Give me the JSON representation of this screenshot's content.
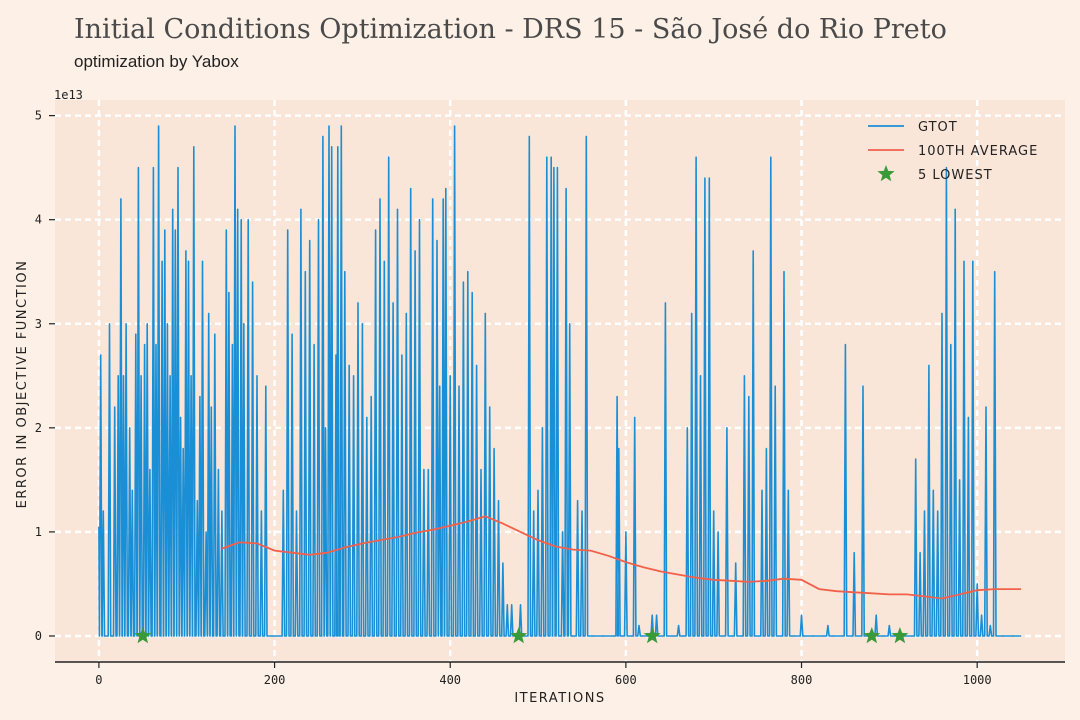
{
  "chart_data": {
    "type": "line",
    "title": "Initial Conditions Optimization - DRS 15 - São José do Rio Preto",
    "subtitle": "optimization by Yabox",
    "xlabel": "ITERATIONS",
    "ylabel": "ERROR IN OBJECTIVE FUNCTION",
    "y_scale_label": "1e13",
    "xlim": [
      -50,
      1100
    ],
    "ylim": [
      -2.5,
      51.5
    ],
    "x_ticks": [
      0,
      200,
      400,
      600,
      800,
      1000
    ],
    "y_ticks": [
      0,
      1,
      2,
      3,
      4,
      5
    ],
    "grid": true,
    "legend": {
      "position": "top-right",
      "entries": [
        {
          "label": "GTOT",
          "color": "#1a8fd6"
        },
        {
          "label": "100TH AVERAGE",
          "color": "#f2604a"
        },
        {
          "label": "5 LOWEST",
          "color": "#3a9a3a"
        }
      ]
    },
    "series": [
      {
        "name": "GTOT",
        "color": "#1a8fd6",
        "peaks": [
          [
            2,
            27
          ],
          [
            5,
            12
          ],
          [
            12,
            30
          ],
          [
            18,
            22
          ],
          [
            22,
            25
          ],
          [
            25,
            42
          ],
          [
            28,
            25
          ],
          [
            31,
            30
          ],
          [
            35,
            20
          ],
          [
            38,
            14
          ],
          [
            42,
            29
          ],
          [
            45,
            45
          ],
          [
            48,
            25
          ],
          [
            52,
            28
          ],
          [
            55,
            30
          ],
          [
            58,
            16
          ],
          [
            62,
            45
          ],
          [
            65,
            28
          ],
          [
            68,
            49
          ],
          [
            72,
            36
          ],
          [
            75,
            39
          ],
          [
            78,
            30
          ],
          [
            81,
            25
          ],
          [
            84,
            41
          ],
          [
            87,
            39
          ],
          [
            90,
            45
          ],
          [
            93,
            21
          ],
          [
            96,
            18
          ],
          [
            99,
            37
          ],
          [
            102,
            36
          ],
          [
            105,
            25
          ],
          [
            108,
            47
          ],
          [
            112,
            13
          ],
          [
            115,
            23
          ],
          [
            118,
            36
          ],
          [
            122,
            10
          ],
          [
            125,
            31
          ],
          [
            128,
            22
          ],
          [
            132,
            29
          ],
          [
            136,
            16
          ],
          [
            140,
            12
          ],
          [
            145,
            39
          ],
          [
            148,
            33
          ],
          [
            152,
            28
          ],
          [
            155,
            49
          ],
          [
            158,
            41
          ],
          [
            162,
            40
          ],
          [
            165,
            30
          ],
          [
            170,
            40
          ],
          [
            175,
            34
          ],
          [
            180,
            25
          ],
          [
            185,
            12
          ],
          [
            190,
            24
          ],
          [
            210,
            14
          ],
          [
            215,
            39
          ],
          [
            220,
            29
          ],
          [
            225,
            12
          ],
          [
            230,
            41
          ],
          [
            235,
            35
          ],
          [
            240,
            38
          ],
          [
            245,
            28
          ],
          [
            250,
            40
          ],
          [
            255,
            48
          ],
          [
            258,
            20
          ],
          [
            262,
            49
          ],
          [
            265,
            47
          ],
          [
            270,
            27
          ],
          [
            272,
            47
          ],
          [
            276,
            49
          ],
          [
            280,
            35
          ],
          [
            285,
            26
          ],
          [
            290,
            25
          ],
          [
            295,
            32
          ],
          [
            300,
            30
          ],
          [
            305,
            21
          ],
          [
            310,
            23
          ],
          [
            315,
            39
          ],
          [
            320,
            42
          ],
          [
            325,
            36
          ],
          [
            330,
            46
          ],
          [
            335,
            32
          ],
          [
            340,
            41
          ],
          [
            345,
            27
          ],
          [
            350,
            31
          ],
          [
            355,
            43
          ],
          [
            360,
            37
          ],
          [
            365,
            40
          ],
          [
            370,
            16
          ],
          [
            375,
            16
          ],
          [
            380,
            42
          ],
          [
            385,
            38
          ],
          [
            388,
            24
          ],
          [
            392,
            42
          ],
          [
            395,
            43
          ],
          [
            400,
            25
          ],
          [
            405,
            49
          ],
          [
            410,
            24
          ],
          [
            415,
            34
          ],
          [
            420,
            35
          ],
          [
            425,
            33
          ],
          [
            430,
            26
          ],
          [
            435,
            16
          ],
          [
            440,
            31
          ],
          [
            445,
            22
          ],
          [
            450,
            18
          ],
          [
            455,
            13
          ],
          [
            460,
            7
          ],
          [
            465,
            3
          ],
          [
            470,
            3
          ],
          [
            480,
            3
          ],
          [
            490,
            48
          ],
          [
            495,
            12
          ],
          [
            500,
            14
          ],
          [
            505,
            20
          ],
          [
            510,
            46
          ],
          [
            515,
            46
          ],
          [
            518,
            45
          ],
          [
            522,
            45
          ],
          [
            528,
            10
          ],
          [
            532,
            43
          ],
          [
            536,
            30
          ],
          [
            545,
            13
          ],
          [
            550,
            12
          ],
          [
            555,
            48
          ],
          [
            590,
            23
          ],
          [
            592,
            18
          ],
          [
            600,
            10
          ],
          [
            610,
            21
          ],
          [
            615,
            1
          ],
          [
            630,
            2
          ],
          [
            635,
            2
          ],
          [
            645,
            32
          ],
          [
            660,
            1
          ],
          [
            670,
            20
          ],
          [
            675,
            31
          ],
          [
            680,
            46
          ],
          [
            685,
            25
          ],
          [
            690,
            44
          ],
          [
            695,
            44
          ],
          [
            700,
            12
          ],
          [
            705,
            10
          ],
          [
            715,
            20
          ],
          [
            725,
            7
          ],
          [
            735,
            25
          ],
          [
            740,
            23
          ],
          [
            745,
            37
          ],
          [
            755,
            14
          ],
          [
            760,
            18
          ],
          [
            765,
            46
          ],
          [
            770,
            24
          ],
          [
            780,
            35
          ],
          [
            785,
            14
          ],
          [
            800,
            2
          ],
          [
            830,
            1
          ],
          [
            850,
            28
          ],
          [
            860,
            8
          ],
          [
            870,
            24
          ],
          [
            885,
            2
          ],
          [
            900,
            1
          ],
          [
            930,
            17
          ],
          [
            935,
            8
          ],
          [
            940,
            12
          ],
          [
            945,
            26
          ],
          [
            950,
            14
          ],
          [
            955,
            12
          ],
          [
            960,
            31
          ],
          [
            965,
            45
          ],
          [
            970,
            28
          ],
          [
            975,
            41
          ],
          [
            980,
            15
          ],
          [
            985,
            36
          ],
          [
            990,
            21
          ],
          [
            995,
            36
          ],
          [
            1000,
            5
          ],
          [
            1005,
            2
          ],
          [
            1010,
            22
          ],
          [
            1015,
            1
          ],
          [
            1020,
            35
          ]
        ]
      },
      {
        "name": "100TH AVERAGE",
        "color": "#f2604a",
        "x": [
          140,
          160,
          180,
          200,
          220,
          240,
          260,
          280,
          300,
          320,
          340,
          360,
          380,
          400,
          420,
          440,
          460,
          480,
          500,
          520,
          540,
          560,
          580,
          600,
          620,
          640,
          660,
          680,
          700,
          720,
          740,
          760,
          780,
          800,
          820,
          840,
          860,
          880,
          900,
          920,
          940,
          960,
          980,
          1000,
          1020,
          1050
        ],
        "y": [
          8.4,
          9.0,
          8.9,
          8.2,
          8.0,
          7.8,
          8.0,
          8.5,
          8.9,
          9.2,
          9.5,
          9.9,
          10.2,
          10.6,
          11.0,
          11.5,
          10.8,
          10.0,
          9.2,
          8.6,
          8.3,
          8.2,
          7.7,
          7.1,
          6.6,
          6.2,
          5.9,
          5.6,
          5.4,
          5.3,
          5.2,
          5.3,
          5.5,
          5.4,
          4.5,
          4.3,
          4.2,
          4.1,
          4.0,
          4.0,
          3.8,
          3.6,
          4.0,
          4.4,
          4.5,
          4.5
        ]
      }
    ],
    "lowest_points": {
      "name": "5 LOWEST",
      "color": "#3a9a3a",
      "x": [
        50,
        478,
        630,
        880,
        912
      ],
      "y": [
        0,
        0,
        0,
        0,
        0
      ]
    }
  }
}
